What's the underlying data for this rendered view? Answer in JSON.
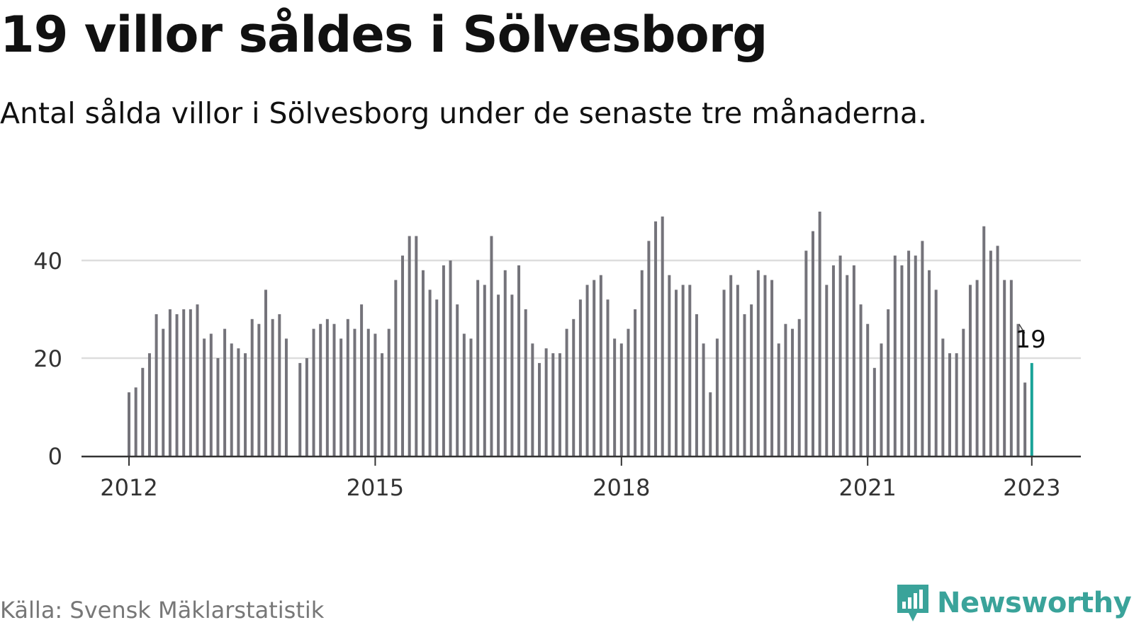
{
  "header": {
    "title": "19 villor såldes i Sölvesborg",
    "subtitle": "Antal sålda villor i Sölvesborg under de senaste tre månaderna."
  },
  "footer": {
    "source": "Källa: Svensk Mäklarstatistik",
    "brand": "Newsworthy",
    "brand_icon": "newsworthy-logo-icon"
  },
  "colors": {
    "bar": "#74737a",
    "highlight": "#1aa398",
    "grid": "#dddddd",
    "axis": "#333333",
    "brand": "#3aa39a"
  },
  "chart_data": {
    "type": "bar",
    "start": "2012-01",
    "values": [
      13,
      14,
      18,
      21,
      29,
      26,
      30,
      29,
      30,
      30,
      31,
      24,
      25,
      20,
      26,
      23,
      22,
      21,
      28,
      27,
      34,
      28,
      29,
      24,
      null,
      19,
      20,
      26,
      27,
      28,
      27,
      24,
      28,
      26,
      31,
      26,
      25,
      21,
      26,
      36,
      41,
      45,
      45,
      38,
      34,
      32,
      39,
      40,
      31,
      25,
      24,
      36,
      35,
      45,
      33,
      38,
      33,
      39,
      30,
      23,
      19,
      22,
      21,
      21,
      26,
      28,
      32,
      35,
      36,
      37,
      32,
      24,
      23,
      26,
      30,
      38,
      44,
      48,
      49,
      37,
      34,
      35,
      35,
      29,
      23,
      13,
      24,
      34,
      37,
      35,
      29,
      31,
      38,
      37,
      36,
      23,
      27,
      26,
      28,
      42,
      46,
      50,
      35,
      39,
      41,
      37,
      39,
      31,
      27,
      18,
      23,
      30,
      41,
      39,
      42,
      41,
      44,
      38,
      34,
      24,
      21,
      21,
      26,
      35,
      36,
      47,
      42,
      43,
      36,
      36,
      27,
      15,
      19
    ],
    "highlight_label": "19",
    "yticks": [
      0,
      20,
      40
    ],
    "ylim": [
      0,
      50
    ],
    "xticks": [
      "2012",
      "2015",
      "2018",
      "2021",
      "2023"
    ],
    "grid": true
  }
}
